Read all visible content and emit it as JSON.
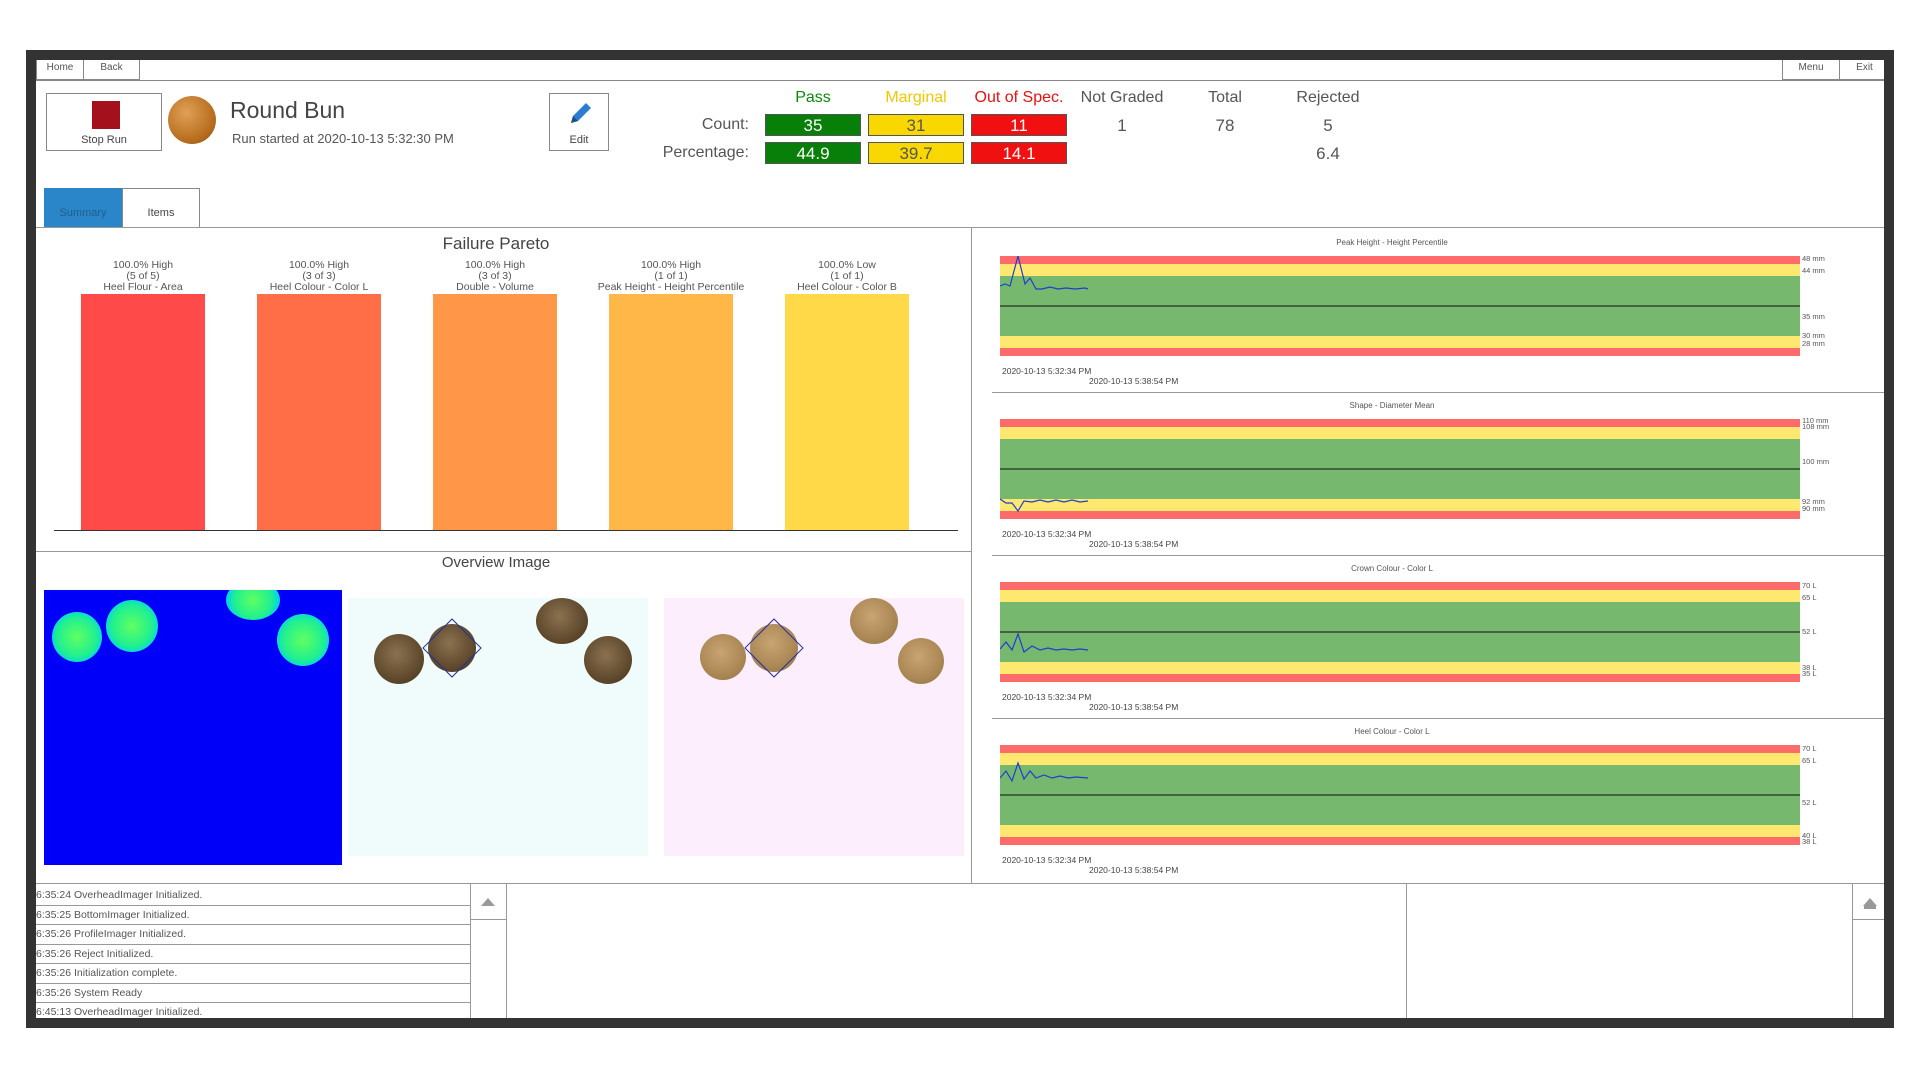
{
  "topbar": {
    "home_label": "Home",
    "back_label": "Back",
    "menu_label": "Menu",
    "exit_label": "Exit"
  },
  "run": {
    "stop_label": "Stop Run",
    "product_title": "Round Bun",
    "started_text": "Run started at 2020-10-13 5:32:30 PM",
    "edit_label": "Edit"
  },
  "stats": {
    "headers": {
      "pass": "Pass",
      "marginal": "Marginal",
      "out_of_spec": "Out of Spec.",
      "not_graded": "Not Graded",
      "total": "Total",
      "rejected": "Rejected"
    },
    "count_label": "Count:",
    "percentage_label": "Percentage:",
    "count": {
      "pass": "35",
      "marginal": "31",
      "out_of_spec": "11",
      "not_graded": "1",
      "total": "78",
      "rejected": "5"
    },
    "percentage": {
      "pass": "44.9",
      "marginal": "39.7",
      "out_of_spec": "14.1",
      "rejected": "6.4"
    },
    "colors": {
      "pass": "#087f08",
      "marginal": "#f8d800",
      "out_of_spec": "#f01010"
    }
  },
  "tabs": [
    {
      "label": "Summary",
      "active": true
    },
    {
      "label": "Items",
      "active": false
    }
  ],
  "pareto": {
    "title": "Failure Pareto",
    "bars": [
      {
        "line1": "100.0% High",
        "line2": "(5 of 5)",
        "line3": "Heel Flour - Area",
        "value": 100,
        "color": "#ff4a4a"
      },
      {
        "line1": "100.0% High",
        "line2": "(3 of 3)",
        "line3": "Heel Colour - Color L",
        "value": 100,
        "color": "#ff6e46"
      },
      {
        "line1": "100.0% High",
        "line2": "(3 of 3)",
        "line3": "Double - Volume",
        "value": 100,
        "color": "#ff9648"
      },
      {
        "line1": "100.0% High",
        "line2": "(1 of 1)",
        "line3": "Peak Height - Height Percentile",
        "value": 100,
        "color": "#ffb848"
      },
      {
        "line1": "100.0% Low",
        "line2": "(1 of 1)",
        "line3": "Heel Colour - Color B",
        "value": 100,
        "color": "#ffd948"
      }
    ]
  },
  "overview": {
    "title": "Overview Image"
  },
  "charts": [
    {
      "title": "Peak Height - Height Percentile",
      "start": "2020-10-13 5:32:34 PM",
      "end": "2020-10-13 5:38:54 PM",
      "ticks": [
        "48 mm",
        "44 mm",
        "35 mm",
        "30 mm",
        "28 mm"
      ]
    },
    {
      "title": "Shape - Diameter Mean",
      "start": "2020-10-13 5:32:34 PM",
      "end": "2020-10-13 5:38:54 PM",
      "ticks": [
        "110 mm",
        "108 mm",
        "100 mm",
        "92 mm",
        "90 mm"
      ]
    },
    {
      "title": "Crown Colour - Color L",
      "start": "2020-10-13 5:32:34 PM",
      "end": "2020-10-13 5:38:54 PM",
      "ticks": [
        "70 L",
        "65 L",
        "52 L",
        "38 L",
        "35 L"
      ]
    },
    {
      "title": "Heel Colour - Color L",
      "start": "2020-10-13 5:32:34 PM",
      "end": "2020-10-13 5:38:54 PM",
      "ticks": [
        "70 L",
        "65 L",
        "52 L",
        "40 L",
        "38 L"
      ]
    }
  ],
  "log": [
    "6:35:24 OverheadImager Initialized.",
    "6:35:25 BottomImager Initialized.",
    "6:35:26 ProfileImager Initialized.",
    "6:35:26 Reject Initialized.",
    "6:35:26 Initialization complete.",
    "6:35:26 System Ready",
    "6:45:13 OverheadImager Initialized."
  ]
}
